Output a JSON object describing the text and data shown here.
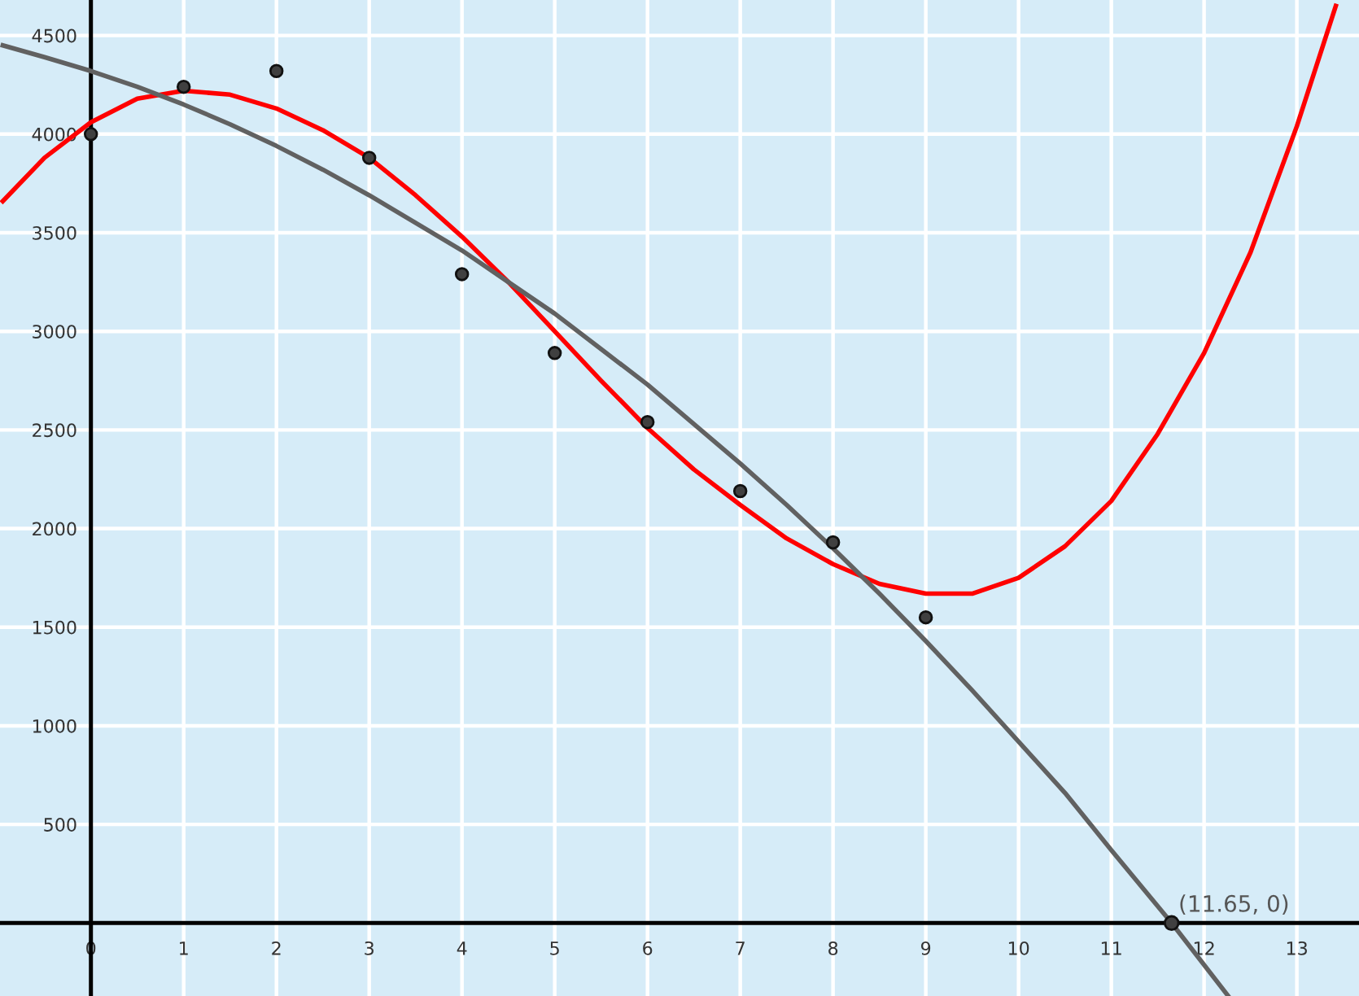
{
  "chart_data": {
    "type": "scatter",
    "xlim": [
      -0.98,
      13.67
    ],
    "ylim": [
      -370,
      4680
    ],
    "xticks": [
      0,
      1,
      2,
      3,
      4,
      5,
      6,
      7,
      8,
      9,
      10,
      11,
      12,
      13
    ],
    "yticks": [
      500,
      1000,
      1500,
      2000,
      2500,
      3000,
      3500,
      4000,
      4500
    ],
    "grid": true,
    "series": [
      {
        "color": "#404040",
        "marker": "circle",
        "x": [
          0,
          1,
          2,
          3,
          4,
          5,
          6,
          7,
          8,
          9
        ],
        "values": [
          4000,
          4240,
          4320,
          3880,
          3290,
          2890,
          2540,
          2190,
          1930,
          1550
        ]
      },
      {
        "type": "line",
        "color": "#ff0000",
        "x": [
          -0.95,
          -0.5,
          0,
          0.5,
          1,
          1.5,
          2,
          2.5,
          3,
          3.5,
          4,
          4.5,
          5,
          5.5,
          6,
          6.5,
          7,
          7.5,
          8,
          8.5,
          9,
          9.5,
          10,
          10.5,
          11,
          11.5,
          12,
          12.5,
          13,
          13.42
        ],
        "values": [
          3660,
          3880,
          4060,
          4180,
          4220,
          4200,
          4130,
          4020,
          3880,
          3690,
          3480,
          3250,
          3000,
          2750,
          2510,
          2300,
          2120,
          1950,
          1820,
          1720,
          1670,
          1670,
          1750,
          1910,
          2140,
          2480,
          2890,
          3400,
          4040,
          4650
        ]
      },
      {
        "type": "line",
        "color": "#616161",
        "x": [
          -0.95,
          -0.5,
          0,
          0.5,
          1,
          1.5,
          2,
          2.5,
          3,
          3.5,
          4,
          4.5,
          5,
          5.5,
          6,
          6.5,
          7,
          7.5,
          8,
          8.5,
          9,
          9.5,
          10,
          10.5,
          11,
          11.65,
          12.26
        ],
        "values": [
          4450,
          4390,
          4320,
          4240,
          4150,
          4050,
          3940,
          3820,
          3690,
          3550,
          3410,
          3250,
          3090,
          2910,
          2730,
          2530,
          2330,
          2120,
          1900,
          1670,
          1430,
          1180,
          920,
          660,
          370,
          0,
          -370
        ]
      }
    ],
    "annotations": [
      {
        "text": "(11.65, 0)",
        "x": 11.65,
        "y": 0
      }
    ]
  }
}
